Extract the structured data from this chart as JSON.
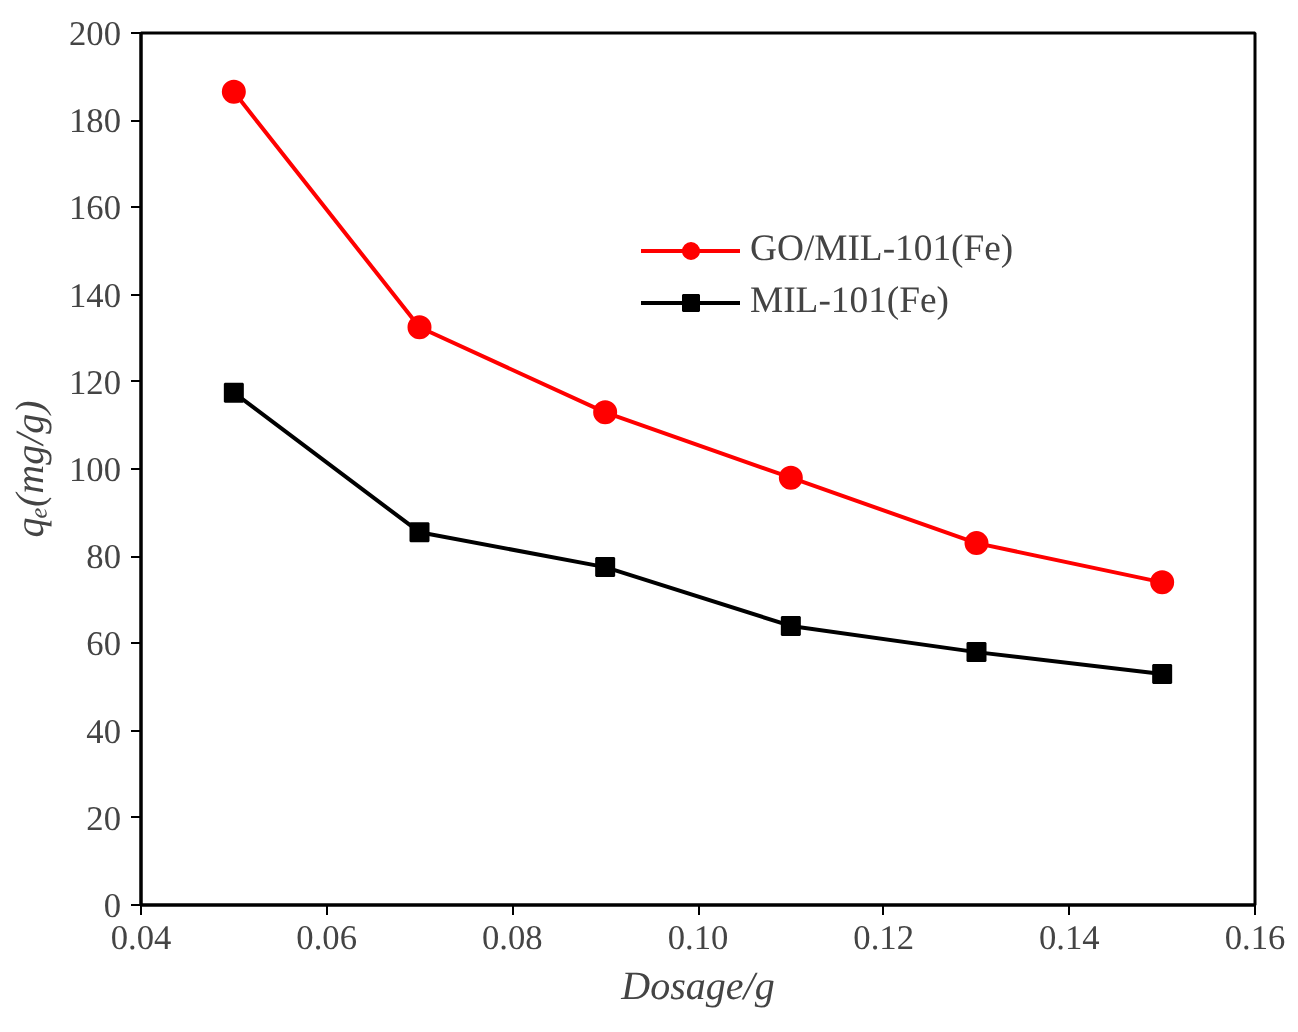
{
  "chart_data": {
    "type": "line",
    "xlabel": "Dosage/g",
    "ylabel": "qₑ(mg/g)",
    "x": [
      0.05,
      0.07,
      0.09,
      0.11,
      0.13,
      0.15
    ],
    "series": [
      {
        "name": "GO/MIL-101(Fe)",
        "color": "#ff0000",
        "marker": "circle",
        "values": [
          186.5,
          132.5,
          113,
          98,
          83,
          74
        ]
      },
      {
        "name": "MIL-101(Fe)",
        "color": "#000000",
        "marker": "square",
        "values": [
          117.5,
          85.5,
          77.5,
          64,
          58,
          53
        ]
      }
    ],
    "xlim": [
      0.04,
      0.16
    ],
    "xticks": [
      {
        "value": 0.04,
        "label": "0.04"
      },
      {
        "value": 0.06,
        "label": "0.06"
      },
      {
        "value": 0.08,
        "label": "0.08"
      },
      {
        "value": 0.1,
        "label": "0.10"
      },
      {
        "value": 0.12,
        "label": "0.12"
      },
      {
        "value": 0.14,
        "label": "0.14"
      },
      {
        "value": 0.16,
        "label": "0.16"
      }
    ],
    "ylim": [
      0,
      200
    ],
    "yticks": [
      0,
      20,
      40,
      60,
      80,
      100,
      120,
      140,
      160,
      180,
      200
    ],
    "grid": false,
    "legend": "top right",
    "line_style": "solid"
  }
}
